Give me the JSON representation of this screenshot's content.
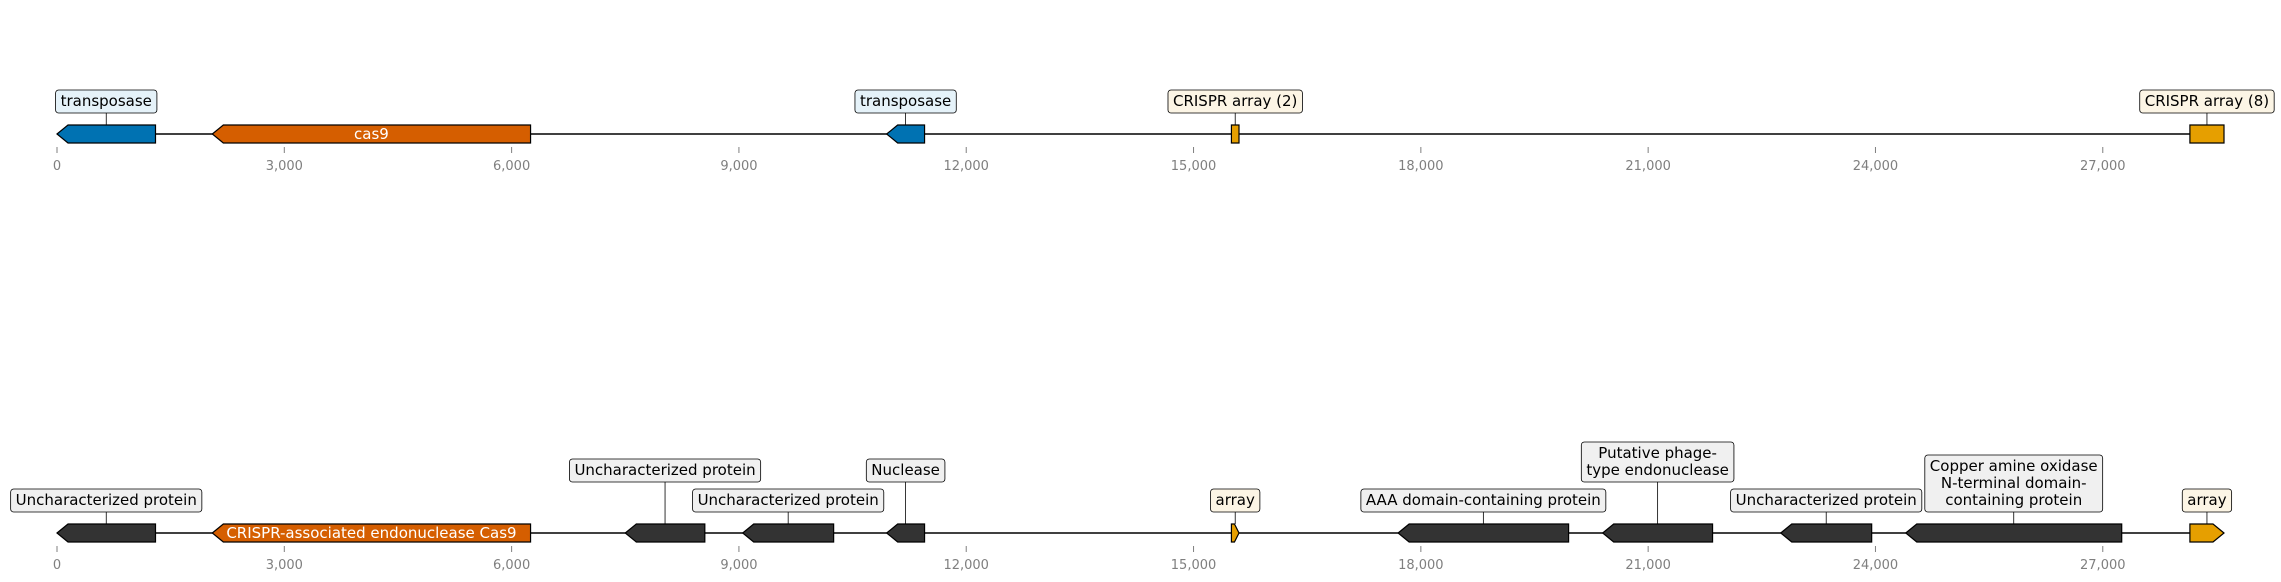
{
  "tracks": [
    {
      "features": [
        {
          "start": 0,
          "end": 1300,
          "strand": -1,
          "color": "#0072b2",
          "label": "transposase",
          "label_style": "box",
          "box_fill": "#e5f2f9"
        },
        {
          "start": 2050,
          "end": 6250,
          "strand": -1,
          "color": "#d55e00",
          "label": "cas9",
          "label_style": "inside"
        },
        {
          "start": 10950,
          "end": 11450,
          "strand": -1,
          "color": "#0072b2",
          "label": "transposase",
          "label_style": "box",
          "box_fill": "#e5f2f9"
        },
        {
          "start": 15500,
          "end": 15600,
          "strand": 0,
          "color": "#e69f00",
          "label": "CRISPR array (2)",
          "label_style": "box",
          "box_fill": "#fcf5e5"
        },
        {
          "start": 28150,
          "end": 28600,
          "strand": 0,
          "color": "#e69f00",
          "label": "CRISPR array (8)",
          "label_style": "box",
          "box_fill": "#fcf5e5"
        }
      ]
    },
    {
      "features": [
        {
          "start": 0,
          "end": 1300,
          "strand": -1,
          "color": "#333333",
          "label": "Uncharacterized protein",
          "label_style": "box",
          "box_fill": "#f0f0f0"
        },
        {
          "start": 2050,
          "end": 6250,
          "strand": -1,
          "color": "#d55e00",
          "label": "CRISPR-associated endonuclease Cas9",
          "label_style": "inside"
        },
        {
          "start": 7500,
          "end": 8550,
          "strand": -1,
          "color": "#333333",
          "label": "Uncharacterized protein",
          "label_style": "box",
          "box_fill": "#f0f0f0"
        },
        {
          "start": 9050,
          "end": 10250,
          "strand": -1,
          "color": "#333333",
          "label": "Uncharacterized protein",
          "label_style": "box",
          "box_fill": "#f0f0f0"
        },
        {
          "start": 10950,
          "end": 11450,
          "strand": -1,
          "color": "#333333",
          "label": "Nuclease",
          "label_style": "box",
          "box_fill": "#f0f0f0"
        },
        {
          "start": 15500,
          "end": 15600,
          "strand": 1,
          "color": "#e69f00",
          "label": "array",
          "label_style": "box",
          "box_fill": "#fcf5e5"
        },
        {
          "start": 17700,
          "end": 19950,
          "strand": -1,
          "color": "#333333",
          "label": "AAA domain-containing protein",
          "label_style": "box",
          "box_fill": "#f0f0f0"
        },
        {
          "start": 20400,
          "end": 21850,
          "strand": -1,
          "color": "#333333",
          "label": "Putative phage-\ntype endonuclease",
          "label_style": "box",
          "box_fill": "#f0f0f0"
        },
        {
          "start": 22750,
          "end": 23950,
          "strand": -1,
          "color": "#333333",
          "label": "Uncharacterized protein",
          "label_style": "box",
          "box_fill": "#f0f0f0"
        },
        {
          "start": 24400,
          "end": 27250,
          "strand": -1,
          "color": "#333333",
          "label": "Copper amine oxidase\nN-terminal domain-\ncontaining protein",
          "label_style": "box",
          "box_fill": "#f0f0f0"
        },
        {
          "start": 28150,
          "end": 28600,
          "strand": 1,
          "color": "#e69f00",
          "label": "array",
          "label_style": "box",
          "box_fill": "#fcf5e5"
        }
      ]
    }
  ],
  "axis": {
    "min": 0,
    "max": 28600,
    "ticks": [
      0,
      3000,
      6000,
      9000,
      12000,
      15000,
      18000,
      21000,
      24000,
      27000
    ],
    "tick_labels": [
      "0",
      "3,000",
      "6,000",
      "9,000",
      "12,000",
      "15,000",
      "18,000",
      "21,000",
      "24,000",
      "27,000"
    ]
  }
}
